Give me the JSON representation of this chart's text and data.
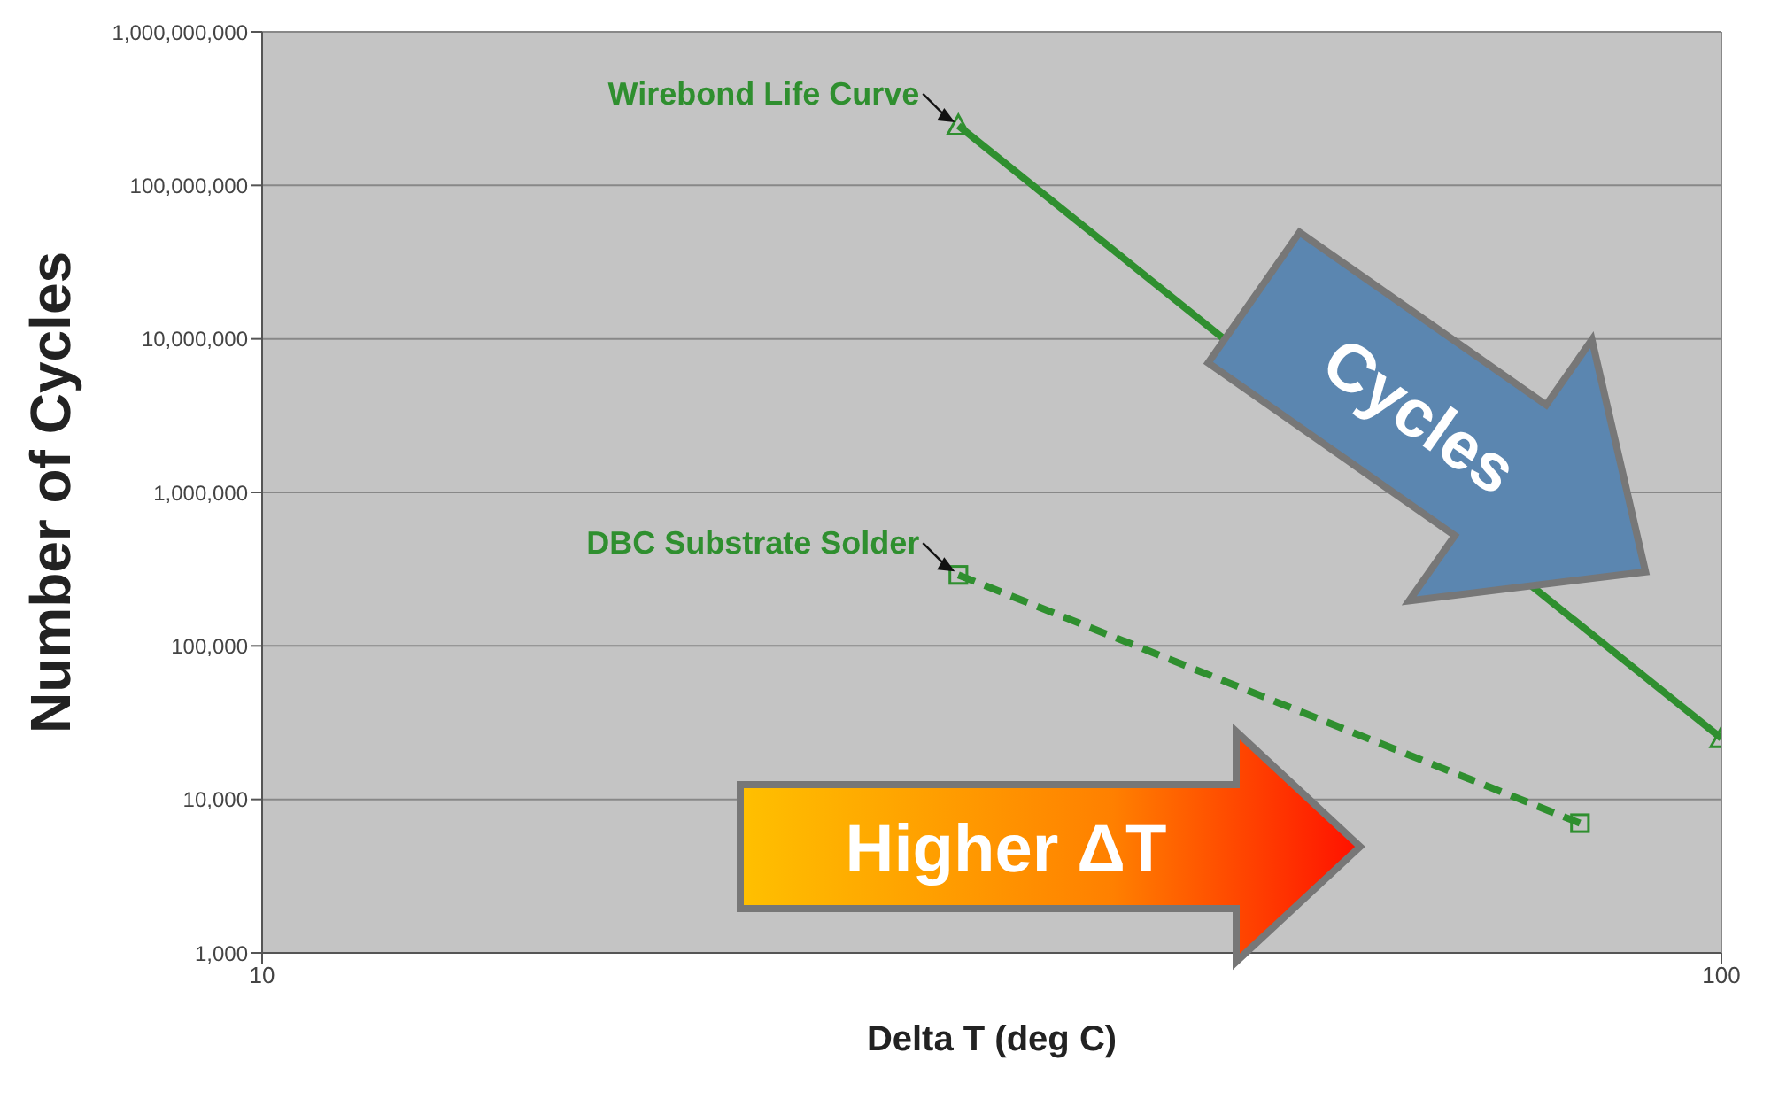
{
  "chart_data": {
    "type": "line",
    "xlabel": "Delta T (deg C)",
    "ylabel": "Number of Cycles",
    "log": "xy",
    "grid": true,
    "xlim": [
      10,
      100
    ],
    "xticks": [
      10,
      100
    ],
    "ylim": [
      1000,
      1000000000
    ],
    "yticks": [
      {
        "value": 1000,
        "label": "1,000"
      },
      {
        "value": 10000,
        "label": "10,000"
      },
      {
        "value": 100000,
        "label": "100,000"
      },
      {
        "value": 1000000,
        "label": "1,000,000"
      },
      {
        "value": 10000000,
        "label": "10,000,000"
      },
      {
        "value": 100000000,
        "label": "100,000,000"
      },
      {
        "value": 1000000000,
        "label": "1,000,000,000"
      }
    ],
    "series": [
      {
        "color": "#2f8f2f",
        "x": [
          30,
          100
        ],
        "values": [
          245000000,
          25000
        ],
        "marker": "triangle",
        "line_style": "solid"
      },
      {
        "color": "#2f8f2f",
        "x": [
          30,
          80
        ],
        "values": [
          290000,
          7000
        ],
        "marker": "square",
        "line_style": "dashed"
      }
    ],
    "annotations": [
      {
        "text": "Wirebond Life Curve",
        "x": 30,
        "y": 245000000
      },
      {
        "text": "DBC Substrate Solder",
        "x": 30,
        "y": 290000
      },
      "Cycles",
      "Higher ΔT"
    ]
  }
}
